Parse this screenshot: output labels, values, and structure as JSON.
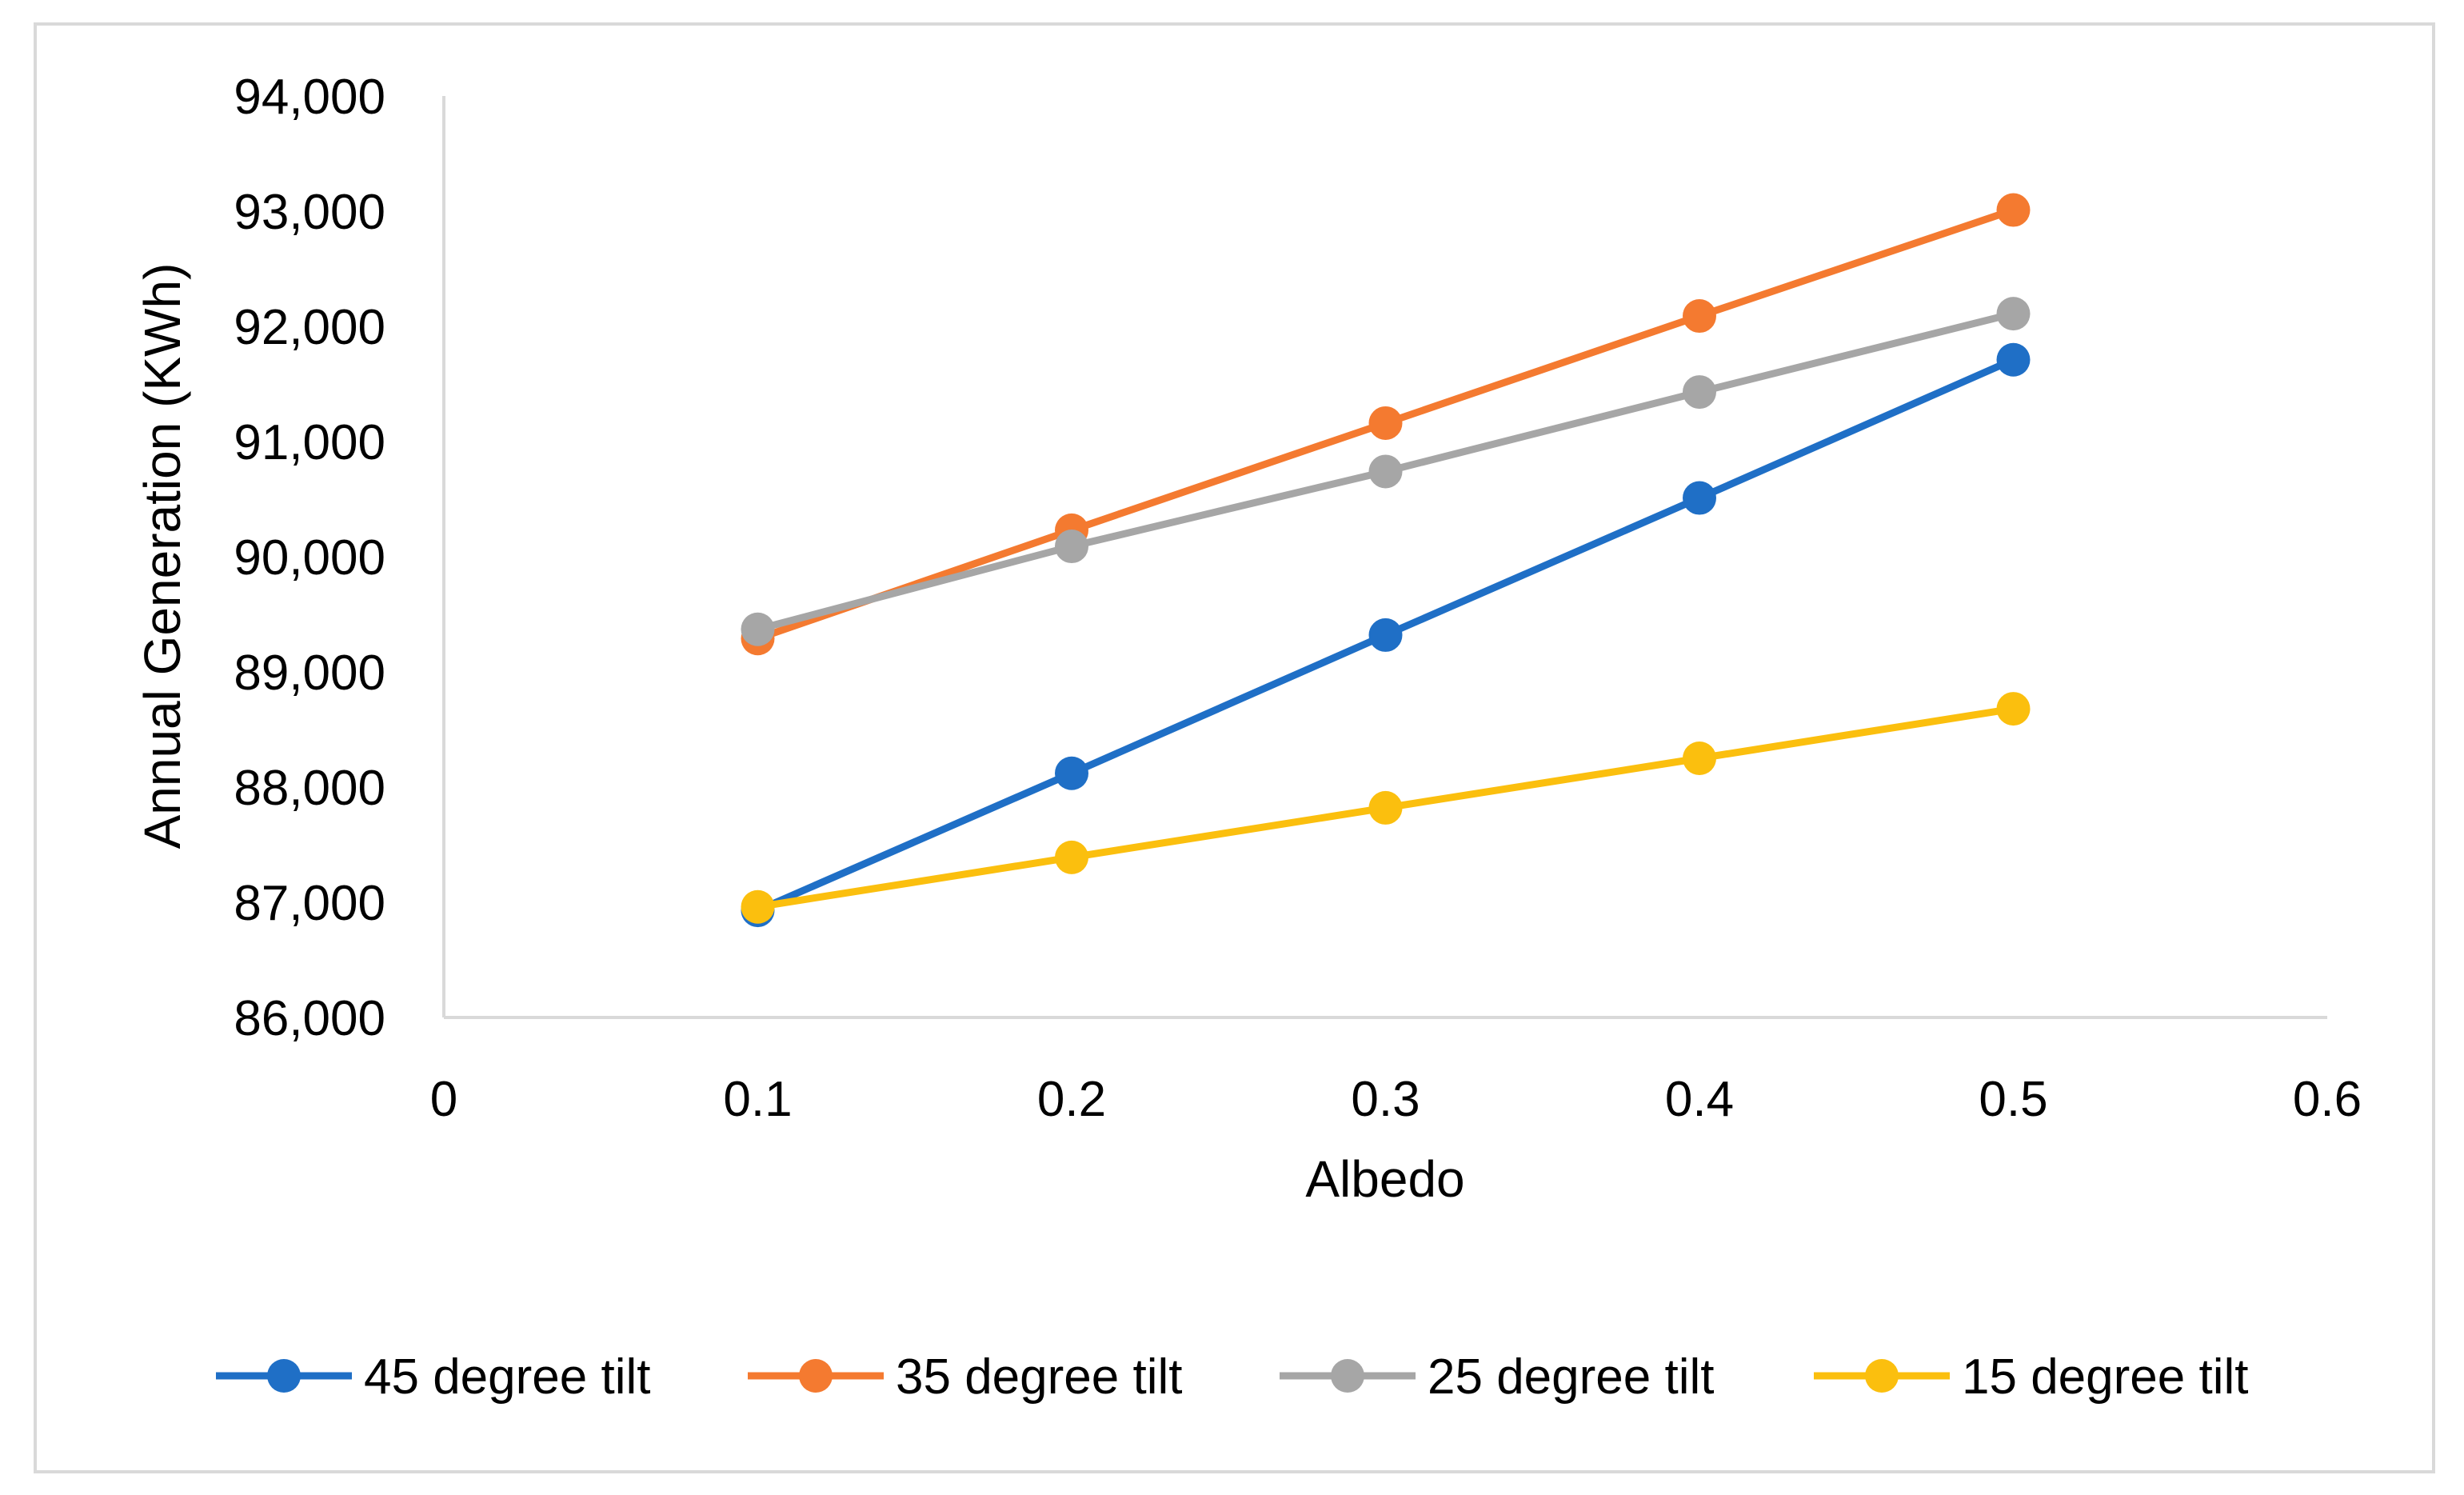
{
  "chart_data": {
    "type": "line",
    "title": "",
    "xlabel": "Albedo",
    "ylabel": "Annual Generation (KWh)",
    "xlim": [
      0,
      0.6
    ],
    "ylim": [
      86000,
      94000
    ],
    "x_ticks": [
      0,
      0.1,
      0.2,
      0.3,
      0.4,
      0.5,
      0.6
    ],
    "x_tick_labels": [
      "0",
      "0.1",
      "0.2",
      "0.3",
      "0.4",
      "0.5",
      "0.6"
    ],
    "y_ticks": [
      86000,
      87000,
      88000,
      89000,
      90000,
      91000,
      92000,
      93000,
      94000
    ],
    "y_tick_labels": [
      "86,000",
      "87,000",
      "88,000",
      "89,000",
      "90,000",
      "91,000",
      "92,000",
      "93,000",
      "94,000"
    ],
    "grid": false,
    "legend_position": "bottom",
    "x": [
      0.1,
      0.2,
      0.3,
      0.4,
      0.5
    ],
    "series": [
      {
        "name": "45 degree tilt",
        "color": "#1f6fc6",
        "values": [
          86930,
          88120,
          89320,
          90510,
          91710
        ]
      },
      {
        "name": "35 degree tilt",
        "color": "#f47a30",
        "values": [
          89290,
          90230,
          91160,
          92090,
          93010
        ]
      },
      {
        "name": "25 degree tilt",
        "color": "#a6a6a6",
        "values": [
          89370,
          90090,
          90740,
          91430,
          92110
        ]
      },
      {
        "name": "15 degree tilt",
        "color": "#fbbf0e",
        "values": [
          86960,
          87390,
          87820,
          88250,
          88680
        ]
      }
    ]
  }
}
